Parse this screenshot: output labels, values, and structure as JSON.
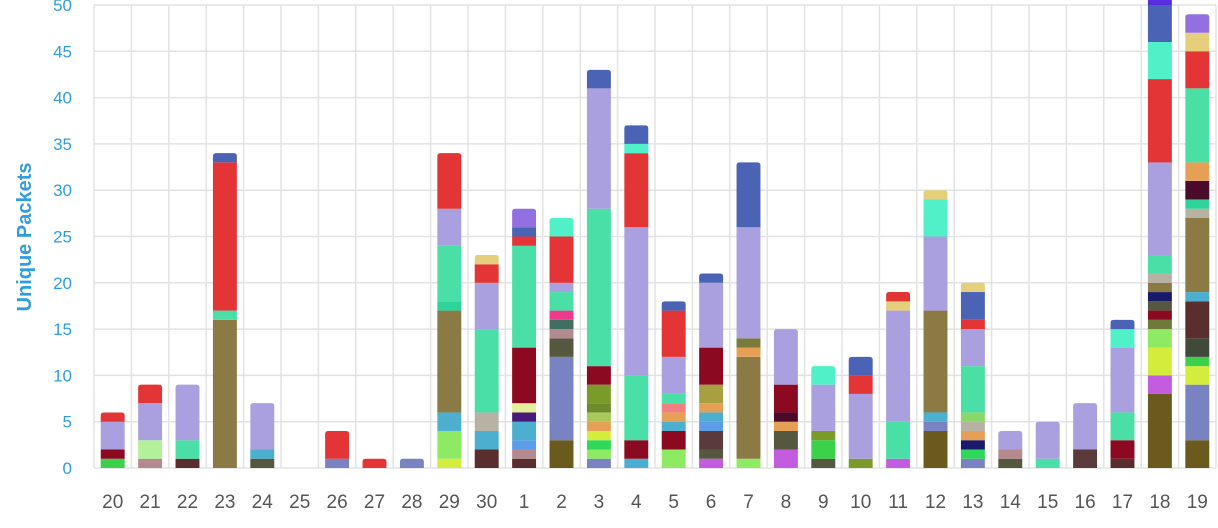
{
  "chart_data": {
    "type": "bar",
    "stacked": true,
    "ylabel": "Unique Packets",
    "xlabel": "",
    "ylim": [
      0,
      50
    ],
    "yticks": [
      0,
      5,
      10,
      15,
      20,
      25,
      30,
      35,
      40,
      45,
      50
    ],
    "grid": true,
    "legend": "none",
    "categories": [
      "20",
      "21",
      "22",
      "23",
      "24",
      "25",
      "26",
      "27",
      "28",
      "29",
      "30",
      "1",
      "2",
      "3",
      "4",
      "5",
      "6",
      "7",
      "8",
      "9",
      "10",
      "11",
      "12",
      "13",
      "14",
      "15",
      "16",
      "17",
      "18",
      "19"
    ],
    "stacks": [
      [
        {
          "v": 1,
          "c": "#3bd14a"
        },
        {
          "v": 1,
          "c": "#8b0a22"
        },
        {
          "v": 3,
          "c": "#aba0df"
        },
        {
          "v": 1,
          "c": "#e33535"
        }
      ],
      [
        {
          "v": 1,
          "c": "#b48a8f"
        },
        {
          "v": 2,
          "c": "#b3f09a"
        },
        {
          "v": 4,
          "c": "#aba0df"
        },
        {
          "v": 2,
          "c": "#e33535"
        }
      ],
      [
        {
          "v": 1,
          "c": "#5a2e2e"
        },
        {
          "v": 2,
          "c": "#4adfa6"
        },
        {
          "v": 6,
          "c": "#aba0df"
        }
      ],
      [
        {
          "v": 16,
          "c": "#8b7a44"
        },
        {
          "v": 1,
          "c": "#4adfa6"
        },
        {
          "v": 16,
          "c": "#e33535"
        },
        {
          "v": 1,
          "c": "#4a63b5"
        }
      ],
      [
        {
          "v": 1,
          "c": "#56573f"
        },
        {
          "v": 1,
          "c": "#4dafd0"
        },
        {
          "v": 5,
          "c": "#aba0df"
        }
      ],
      [],
      [
        {
          "v": 1,
          "c": "#7a83c2"
        },
        {
          "v": 3,
          "c": "#e33535"
        }
      ],
      [
        {
          "v": 1,
          "c": "#e33535"
        }
      ],
      [
        {
          "v": 1,
          "c": "#7a83c2"
        }
      ],
      [
        {
          "v": 1,
          "c": "#d4ec3c"
        },
        {
          "v": 3,
          "c": "#8dea62"
        },
        {
          "v": 2,
          "c": "#4dafd0"
        },
        {
          "v": 11,
          "c": "#8b7a44"
        },
        {
          "v": 1,
          "c": "#2fd49a"
        },
        {
          "v": 6,
          "c": "#4adfa6"
        },
        {
          "v": 4,
          "c": "#aba0df"
        },
        {
          "v": 6,
          "c": "#e33535"
        }
      ],
      [
        {
          "v": 2,
          "c": "#5a2e2e"
        },
        {
          "v": 2,
          "c": "#4dafd0"
        },
        {
          "v": 2,
          "c": "#b7b2a4"
        },
        {
          "v": 9,
          "c": "#4adfa6"
        },
        {
          "v": 5,
          "c": "#aba0df"
        },
        {
          "v": 2,
          "c": "#e33535"
        },
        {
          "v": 1,
          "c": "#e6cf7a"
        }
      ],
      [
        {
          "v": 1,
          "c": "#5a2e2e"
        },
        {
          "v": 1,
          "c": "#b48a8f"
        },
        {
          "v": 1,
          "c": "#5d9ce8"
        },
        {
          "v": 2,
          "c": "#4dafd0"
        },
        {
          "v": 1,
          "c": "#4a1a7a"
        },
        {
          "v": 1,
          "c": "#e6ef9a"
        },
        {
          "v": 6,
          "c": "#8b0a22"
        },
        {
          "v": 11,
          "c": "#4adfa6"
        },
        {
          "v": 1,
          "c": "#e33535"
        },
        {
          "v": 1,
          "c": "#4a63b5"
        },
        {
          "v": 2,
          "c": "#9370e0"
        }
      ],
      [
        {
          "v": 3,
          "c": "#6b5a1e"
        },
        {
          "v": 9,
          "c": "#7a83c2"
        },
        {
          "v": 2,
          "c": "#56573f"
        },
        {
          "v": 1,
          "c": "#b48a8f"
        },
        {
          "v": 1,
          "c": "#3f6e62"
        },
        {
          "v": 1,
          "c": "#f03a8c"
        },
        {
          "v": 2,
          "c": "#4adfa6"
        },
        {
          "v": 1,
          "c": "#aba0df"
        },
        {
          "v": 5,
          "c": "#e33535"
        },
        {
          "v": 2,
          "c": "#50f0c8"
        }
      ],
      [
        {
          "v": 1,
          "c": "#7a83c2"
        },
        {
          "v": 1,
          "c": "#8dea62"
        },
        {
          "v": 1,
          "c": "#2ed85a"
        },
        {
          "v": 1,
          "c": "#d4ec3c"
        },
        {
          "v": 1,
          "c": "#e5a055"
        },
        {
          "v": 1,
          "c": "#a8c85a"
        },
        {
          "v": 1,
          "c": "#6f8a2a"
        },
        {
          "v": 2,
          "c": "#7a9a2a"
        },
        {
          "v": 2,
          "c": "#8b0a22"
        },
        {
          "v": 17,
          "c": "#4adfa6"
        },
        {
          "v": 13,
          "c": "#aba0df"
        },
        {
          "v": 2,
          "c": "#4a63b5"
        }
      ],
      [
        {
          "v": 1,
          "c": "#4dafd0"
        },
        {
          "v": 2,
          "c": "#8b0a22"
        },
        {
          "v": 7,
          "c": "#4adfa6"
        },
        {
          "v": 16,
          "c": "#aba0df"
        },
        {
          "v": 8,
          "c": "#e33535"
        },
        {
          "v": 1,
          "c": "#50f0c8"
        },
        {
          "v": 2,
          "c": "#4a63b5"
        }
      ],
      [
        {
          "v": 2,
          "c": "#8dea62"
        },
        {
          "v": 2,
          "c": "#8b0a22"
        },
        {
          "v": 1,
          "c": "#4dafd0"
        },
        {
          "v": 1,
          "c": "#e5a055"
        },
        {
          "v": 1,
          "c": "#f08080"
        },
        {
          "v": 1,
          "c": "#4adfa6"
        },
        {
          "v": 4,
          "c": "#aba0df"
        },
        {
          "v": 5,
          "c": "#e33535"
        },
        {
          "v": 1,
          "c": "#4a63b5"
        }
      ],
      [
        {
          "v": 1,
          "c": "#c45ce0"
        },
        {
          "v": 1,
          "c": "#56573f"
        },
        {
          "v": 2,
          "c": "#5a3a3a"
        },
        {
          "v": 1,
          "c": "#5d9ce8"
        },
        {
          "v": 1,
          "c": "#4dafd0"
        },
        {
          "v": 1,
          "c": "#e5a055"
        },
        {
          "v": 2,
          "c": "#a8a040"
        },
        {
          "v": 4,
          "c": "#8b0a22"
        },
        {
          "v": 7,
          "c": "#aba0df"
        },
        {
          "v": 1,
          "c": "#4a63b5"
        }
      ],
      [
        {
          "v": 1,
          "c": "#8dea62"
        },
        {
          "v": 11,
          "c": "#8b7a44"
        },
        {
          "v": 1,
          "c": "#e5a055"
        },
        {
          "v": 1,
          "c": "#7a7a3a"
        },
        {
          "v": 12,
          "c": "#aba0df"
        },
        {
          "v": 7,
          "c": "#4a63b5"
        }
      ],
      [
        {
          "v": 2,
          "c": "#c45ce0"
        },
        {
          "v": 2,
          "c": "#56573f"
        },
        {
          "v": 1,
          "c": "#e5a055"
        },
        {
          "v": 1,
          "c": "#4a0a2a"
        },
        {
          "v": 3,
          "c": "#8b0a22"
        },
        {
          "v": 6,
          "c": "#aba0df"
        }
      ],
      [
        {
          "v": 1,
          "c": "#56573f"
        },
        {
          "v": 2,
          "c": "#3bd14a"
        },
        {
          "v": 1,
          "c": "#7a9a2a"
        },
        {
          "v": 5,
          "c": "#aba0df"
        },
        {
          "v": 2,
          "c": "#50f0c8"
        }
      ],
      [
        {
          "v": 1,
          "c": "#7a9a2a"
        },
        {
          "v": 7,
          "c": "#aba0df"
        },
        {
          "v": 2,
          "c": "#e33535"
        },
        {
          "v": 2,
          "c": "#4a63b5"
        }
      ],
      [
        {
          "v": 1,
          "c": "#c45ce0"
        },
        {
          "v": 4,
          "c": "#4adfa6"
        },
        {
          "v": 12,
          "c": "#aba0df"
        },
        {
          "v": 1,
          "c": "#e6cf7a"
        },
        {
          "v": 1,
          "c": "#e33535"
        }
      ],
      [
        {
          "v": 4,
          "c": "#6b5a1e"
        },
        {
          "v": 1,
          "c": "#7a83c2"
        },
        {
          "v": 1,
          "c": "#4dafd0"
        },
        {
          "v": 11,
          "c": "#8b7a44"
        },
        {
          "v": 8,
          "c": "#aba0df"
        },
        {
          "v": 4,
          "c": "#50f0c8"
        },
        {
          "v": 1,
          "c": "#e6cf7a"
        }
      ],
      [
        {
          "v": 1,
          "c": "#7a83c2"
        },
        {
          "v": 1,
          "c": "#2ed85a"
        },
        {
          "v": 1,
          "c": "#1a1a6a"
        },
        {
          "v": 1,
          "c": "#e5a055"
        },
        {
          "v": 1,
          "c": "#b7b2a4"
        },
        {
          "v": 1,
          "c": "#8ad86a"
        },
        {
          "v": 5,
          "c": "#4adfa6"
        },
        {
          "v": 4,
          "c": "#aba0df"
        },
        {
          "v": 1,
          "c": "#e33535"
        },
        {
          "v": 3,
          "c": "#4a63b5"
        },
        {
          "v": 1,
          "c": "#e6cf7a"
        }
      ],
      [
        {
          "v": 1,
          "c": "#56573f"
        },
        {
          "v": 1,
          "c": "#b48a8f"
        },
        {
          "v": 2,
          "c": "#aba0df"
        }
      ],
      [
        {
          "v": 1,
          "c": "#4adfa6"
        },
        {
          "v": 4,
          "c": "#aba0df"
        }
      ],
      [
        {
          "v": 2,
          "c": "#5a3a3a"
        },
        {
          "v": 5,
          "c": "#aba0df"
        }
      ],
      [
        {
          "v": 1,
          "c": "#5a2e2e"
        },
        {
          "v": 2,
          "c": "#8b0a22"
        },
        {
          "v": 3,
          "c": "#4adfa6"
        },
        {
          "v": 7,
          "c": "#aba0df"
        },
        {
          "v": 2,
          "c": "#50f0c8"
        },
        {
          "v": 1,
          "c": "#4a63b5"
        }
      ],
      [
        {
          "v": 8,
          "c": "#6b5a1e"
        },
        {
          "v": 2,
          "c": "#c45ce0"
        },
        {
          "v": 3,
          "c": "#d4ec3c"
        },
        {
          "v": 2,
          "c": "#8dea62"
        },
        {
          "v": 1,
          "c": "#6e7a3a"
        },
        {
          "v": 1,
          "c": "#8b0a22"
        },
        {
          "v": 1,
          "c": "#56573f"
        },
        {
          "v": 1,
          "c": "#1a1a6a"
        },
        {
          "v": 1,
          "c": "#8b7a44"
        },
        {
          "v": 1,
          "c": "#b7b2a4"
        },
        {
          "v": 2,
          "c": "#4adfa6"
        },
        {
          "v": 10,
          "c": "#aba0df"
        },
        {
          "v": 9,
          "c": "#e33535"
        },
        {
          "v": 4,
          "c": "#50f0c8"
        },
        {
          "v": 4,
          "c": "#4a63b5"
        },
        {
          "v": 1,
          "c": "#5a2ee0"
        }
      ],
      [
        {
          "v": 3,
          "c": "#6b5a1e"
        },
        {
          "v": 6,
          "c": "#7a83c2"
        },
        {
          "v": 2,
          "c": "#d4ec3c"
        },
        {
          "v": 1,
          "c": "#3bd14a"
        },
        {
          "v": 2,
          "c": "#3f4a3a"
        },
        {
          "v": 4,
          "c": "#5a2e2e"
        },
        {
          "v": 1,
          "c": "#4dafd0"
        },
        {
          "v": 8,
          "c": "#8b7a44"
        },
        {
          "v": 1,
          "c": "#b7b2a4"
        },
        {
          "v": 1,
          "c": "#2fd49a"
        },
        {
          "v": 2,
          "c": "#4a0a2a"
        },
        {
          "v": 2,
          "c": "#e5a055"
        },
        {
          "v": 8,
          "c": "#4adfa6"
        },
        {
          "v": 4,
          "c": "#e33535"
        },
        {
          "v": 2,
          "c": "#e6cf7a"
        },
        {
          "v": 2,
          "c": "#9370e0"
        }
      ]
    ]
  }
}
